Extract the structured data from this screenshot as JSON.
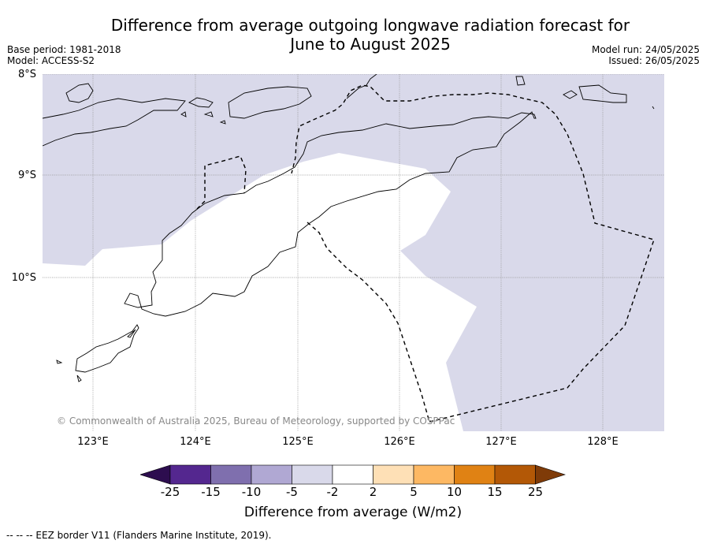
{
  "title_line1": "Difference from average outgoing longwave radiation forecast for",
  "title_line2": "June to August 2025",
  "base_period": "Base period: 1981-2018",
  "model": "Model: ACCESS-S2",
  "model_run": "Model run: 24/05/2025",
  "issued": "Issued: 26/05/2025",
  "copyright": "© Commonwealth of Australia 2025, Bureau of Meteorology, supported by COSPPac",
  "lat_labels": [
    "8°S",
    "9°S",
    "10°S"
  ],
  "lon_labels": [
    "123°E",
    "124°E",
    "125°E",
    "126°E",
    "127°E",
    "128°E"
  ],
  "colorbar": {
    "ticks": [
      "-25",
      "-15",
      "-10",
      "-5",
      "-2",
      "2",
      "5",
      "10",
      "15",
      "25"
    ],
    "colors": [
      "#2d0d4f",
      "#54278f",
      "#7f6fae",
      "#b0a8d3",
      "#d9d9ea",
      "#ffffff",
      "#fee0b6",
      "#fdb863",
      "#e08214",
      "#b35806",
      "#7f3b08"
    ],
    "label": "Difference from average (W/m2)"
  },
  "map": {
    "background_class_color": "#d9d9ea",
    "neutral_class_color": "#ffffff"
  },
  "footnote": "--  --  -- EEZ border V11 (Flanders Marine Institute, 2019)."
}
